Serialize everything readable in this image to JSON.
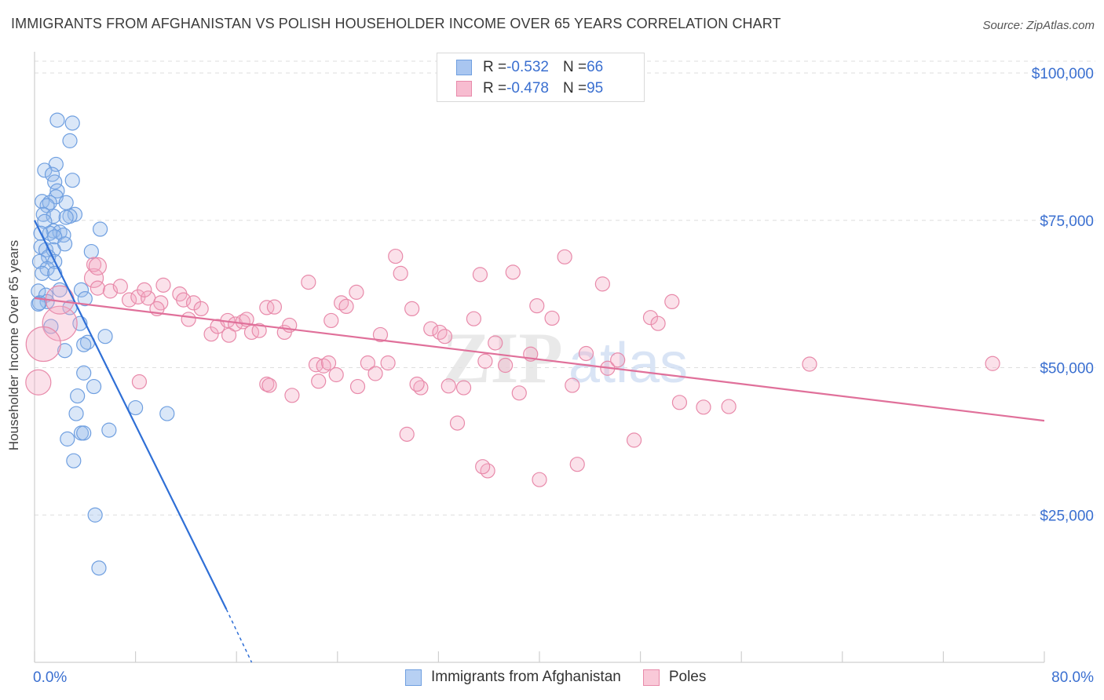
{
  "title": "IMMIGRANTS FROM AFGHANISTAN VS POLISH HOUSEHOLDER INCOME OVER 65 YEARS CORRELATION CHART",
  "source": "Source: ZipAtlas.com",
  "watermark": {
    "zip": "ZIP",
    "atlas": "atlas"
  },
  "legend": {
    "rows": [
      {
        "r_label": "R = ",
        "r_value": "-0.532",
        "n_label": "N = ",
        "n_value": "66",
        "color": "#a9c6f0",
        "border": "#6f9fe0"
      },
      {
        "r_label": "R = ",
        "r_value": "-0.478",
        "n_label": "N = ",
        "n_value": "95",
        "color": "#f7bcd0",
        "border": "#e88aaa"
      }
    ]
  },
  "bottom_legend": [
    {
      "label": "Immigrants from Afghanistan",
      "color": "#b7d0f3",
      "border": "#6f9fe0"
    },
    {
      "label": "Poles",
      "color": "#f9c9d8",
      "border": "#e88aaa"
    }
  ],
  "chart_data": {
    "type": "scatter",
    "title": "IMMIGRANTS FROM AFGHANISTAN VS POLISH HOUSEHOLDER INCOME OVER 65 YEARS CORRELATION CHART",
    "xlabel": "",
    "ylabel": "Householder Income Over 65 years",
    "xlim": [
      0,
      80
    ],
    "ylim": [
      0,
      102000
    ],
    "x_tick_labels": [
      "0.0%",
      "80.0%"
    ],
    "y_ticks": [
      25000,
      50000,
      75000,
      100000
    ],
    "y_tick_labels": [
      "$25,000",
      "$50,000",
      "$75,000",
      "$100,000"
    ],
    "grid": true,
    "legend_position": "top-center",
    "series": [
      {
        "name": "Immigrants from Afghanistan",
        "color": "#6f9fe0",
        "fill": "rgba(150,185,235,0.35)",
        "line_color": "#2f6fd6",
        "trend": {
          "x": [
            0.0,
            15.2
          ],
          "y": [
            75000,
            9000
          ],
          "dash_to": [
            17.2,
            0
          ]
        },
        "points": [
          [
            1.8,
            92000
          ],
          [
            3.0,
            91500
          ],
          [
            2.8,
            88500
          ],
          [
            1.7,
            84500
          ],
          [
            0.8,
            83500
          ],
          [
            1.4,
            82800
          ],
          [
            3.0,
            81800
          ],
          [
            1.6,
            81500
          ],
          [
            1.8,
            80000
          ],
          [
            1.7,
            79000
          ],
          [
            0.6,
            78200
          ],
          [
            2.5,
            78000
          ],
          [
            1.2,
            78000
          ],
          [
            1.0,
            77500
          ],
          [
            0.7,
            76000
          ],
          [
            3.2,
            76000
          ],
          [
            1.5,
            75700
          ],
          [
            2.8,
            75700
          ],
          [
            2.5,
            75500
          ],
          [
            0.8,
            74800
          ],
          [
            5.2,
            73500
          ],
          [
            1.5,
            73200
          ],
          [
            2.0,
            73000
          ],
          [
            1.2,
            72800
          ],
          [
            0.5,
            72800
          ],
          [
            2.3,
            72500
          ],
          [
            1.6,
            72200
          ],
          [
            2.4,
            71000
          ],
          [
            0.5,
            70500
          ],
          [
            0.9,
            70000
          ],
          [
            1.5,
            70000
          ],
          [
            4.5,
            69700
          ],
          [
            1.1,
            68800
          ],
          [
            0.4,
            68000
          ],
          [
            1.6,
            68000
          ],
          [
            1.0,
            66800
          ],
          [
            0.6,
            66000
          ],
          [
            1.6,
            66000
          ],
          [
            2.0,
            63200
          ],
          [
            3.7,
            63200
          ],
          [
            0.3,
            63000
          ],
          [
            0.9,
            62300
          ],
          [
            4.0,
            61700
          ],
          [
            1.0,
            61200
          ],
          [
            0.4,
            61000
          ],
          [
            0.3,
            60800
          ],
          [
            2.8,
            60200
          ],
          [
            3.6,
            57500
          ],
          [
            1.3,
            57000
          ],
          [
            5.6,
            55300
          ],
          [
            4.2,
            54300
          ],
          [
            3.9,
            53900
          ],
          [
            2.4,
            52900
          ],
          [
            3.9,
            49100
          ],
          [
            4.7,
            46800
          ],
          [
            3.4,
            45200
          ],
          [
            8.0,
            43200
          ],
          [
            3.3,
            42200
          ],
          [
            10.5,
            42200
          ],
          [
            5.9,
            39400
          ],
          [
            3.7,
            38900
          ],
          [
            3.9,
            38900
          ],
          [
            2.6,
            37900
          ],
          [
            3.1,
            34200
          ],
          [
            4.8,
            25000
          ],
          [
            5.1,
            16000
          ]
        ]
      },
      {
        "name": "Poles",
        "color": "#e88aaa",
        "fill": "rgba(244,170,195,0.35)",
        "line_color": "#e0709a",
        "trend": {
          "x": [
            0.0,
            80.0
          ],
          "y": [
            61800,
            41000
          ]
        },
        "points": [
          [
            2.0,
            57500
          ],
          [
            2.0,
            61500
          ],
          [
            0.7,
            54000
          ],
          [
            0.3,
            47500
          ],
          [
            4.7,
            65200
          ],
          [
            4.7,
            67500
          ],
          [
            5.0,
            67200
          ],
          [
            5.0,
            63500
          ],
          [
            6.0,
            63000
          ],
          [
            6.8,
            63800
          ],
          [
            7.5,
            61500
          ],
          [
            8.2,
            62000
          ],
          [
            9.0,
            61800
          ],
          [
            10.2,
            64000
          ],
          [
            8.7,
            63200
          ],
          [
            10.0,
            61000
          ],
          [
            9.7,
            60000
          ],
          [
            11.5,
            62500
          ],
          [
            11.8,
            61500
          ],
          [
            12.2,
            58200
          ],
          [
            12.6,
            61000
          ],
          [
            13.2,
            60000
          ],
          [
            14.0,
            55700
          ],
          [
            14.5,
            57000
          ],
          [
            15.3,
            58000
          ],
          [
            15.9,
            57400
          ],
          [
            15.4,
            55500
          ],
          [
            16.5,
            57800
          ],
          [
            17.2,
            56000
          ],
          [
            17.8,
            56300
          ],
          [
            18.4,
            60200
          ],
          [
            19.0,
            60300
          ],
          [
            19.8,
            56000
          ],
          [
            20.2,
            57200
          ],
          [
            21.7,
            64500
          ],
          [
            22.3,
            50500
          ],
          [
            22.9,
            50300
          ],
          [
            23.3,
            50800
          ],
          [
            23.9,
            48800
          ],
          [
            24.3,
            61000
          ],
          [
            24.7,
            60400
          ],
          [
            25.5,
            62800
          ],
          [
            20.4,
            45300
          ],
          [
            18.4,
            47200
          ],
          [
            22.5,
            47700
          ],
          [
            25.6,
            46800
          ],
          [
            26.4,
            50800
          ],
          [
            27.0,
            49000
          ],
          [
            28.0,
            50800
          ],
          [
            27.4,
            55600
          ],
          [
            28.6,
            68900
          ],
          [
            29.0,
            66000
          ],
          [
            29.5,
            38700
          ],
          [
            29.9,
            60000
          ],
          [
            30.6,
            46600
          ],
          [
            31.4,
            56600
          ],
          [
            32.1,
            56000
          ],
          [
            32.5,
            55300
          ],
          [
            32.8,
            46900
          ],
          [
            34.0,
            46600
          ],
          [
            33.5,
            40600
          ],
          [
            34.8,
            58300
          ],
          [
            35.3,
            65800
          ],
          [
            35.7,
            51100
          ],
          [
            35.9,
            32500
          ],
          [
            35.5,
            33200
          ],
          [
            36.5,
            54200
          ],
          [
            37.3,
            50400
          ],
          [
            37.9,
            66200
          ],
          [
            38.4,
            45700
          ],
          [
            39.3,
            52300
          ],
          [
            40.0,
            31000
          ],
          [
            41.0,
            58400
          ],
          [
            42.6,
            47000
          ],
          [
            42.0,
            68800
          ],
          [
            43.0,
            33600
          ],
          [
            43.7,
            52400
          ],
          [
            45.0,
            64200
          ],
          [
            45.4,
            49900
          ],
          [
            46.2,
            51300
          ],
          [
            47.5,
            37700
          ],
          [
            48.8,
            58500
          ],
          [
            49.4,
            57500
          ],
          [
            50.5,
            61200
          ],
          [
            51.1,
            44100
          ],
          [
            53.0,
            43300
          ],
          [
            55.0,
            43400
          ],
          [
            61.4,
            50600
          ],
          [
            75.9,
            50700
          ],
          [
            18.6,
            47000
          ],
          [
            30.3,
            47200
          ],
          [
            8.3,
            47600
          ],
          [
            16.8,
            58200
          ],
          [
            23.5,
            58000
          ],
          [
            39.8,
            60500
          ]
        ]
      }
    ]
  }
}
